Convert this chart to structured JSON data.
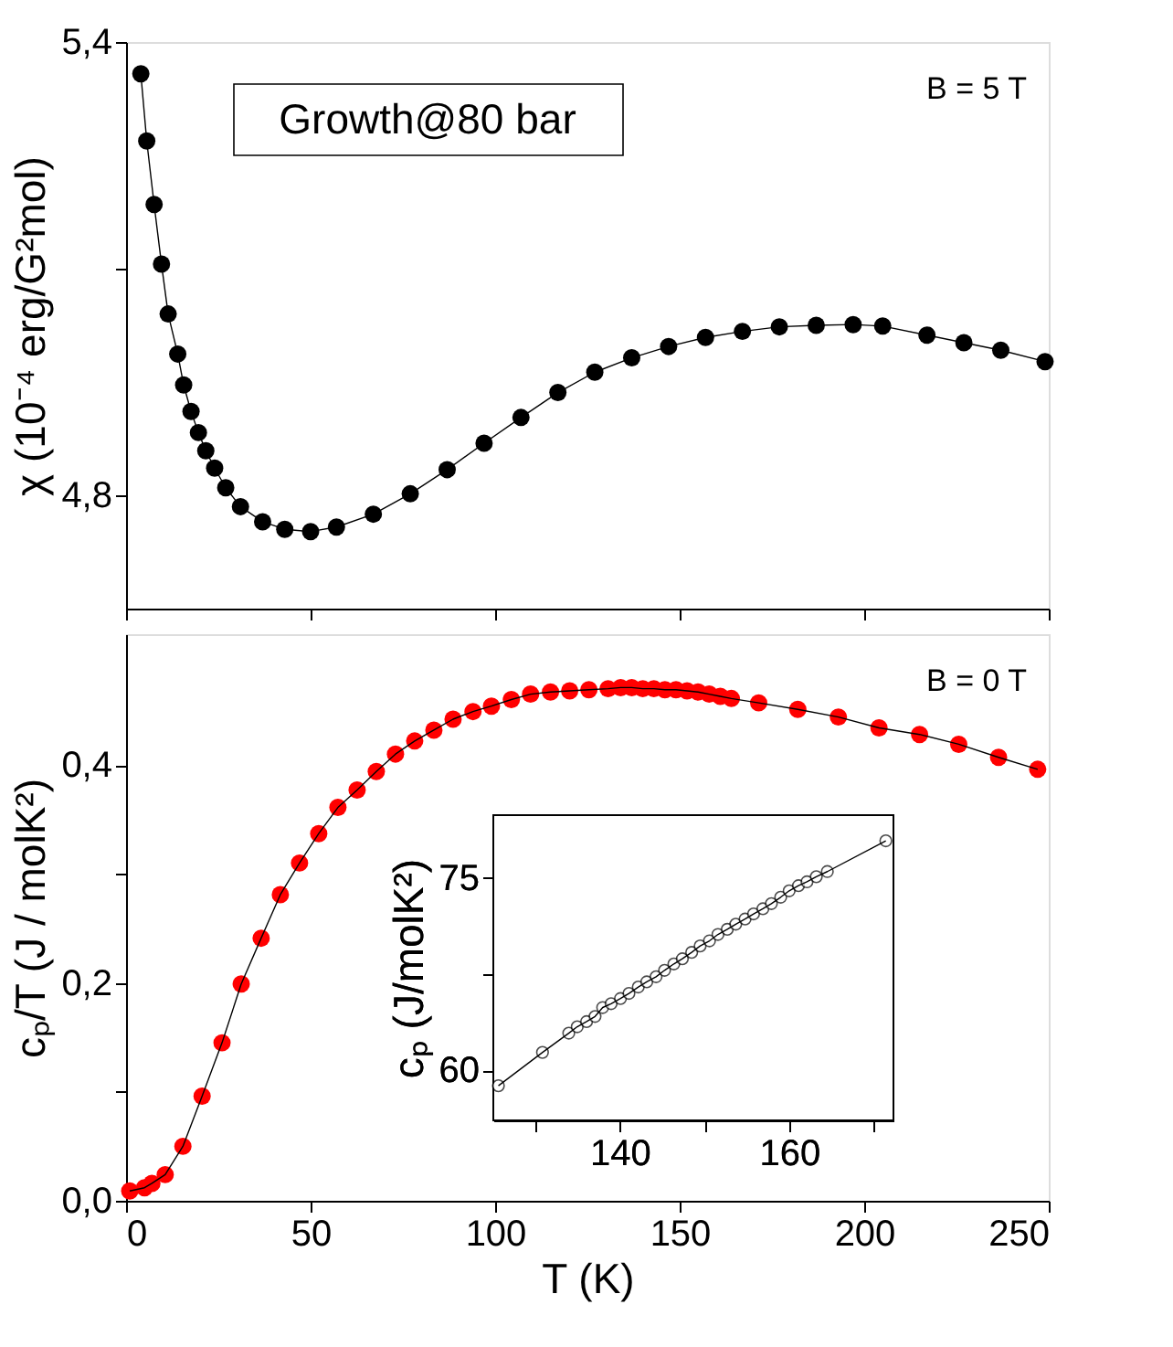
{
  "chart_data": [
    {
      "type": "line",
      "ylabel": "χ (10⁻⁴ erg/G²mol)",
      "xlim": [
        0,
        250
      ],
      "xticks": [
        0,
        50,
        100,
        150,
        200,
        250
      ],
      "ylim": [
        4.65,
        5.4
      ],
      "yticks": [
        {
          "value": 4.8,
          "label": "4,8"
        },
        {
          "value": 5.1,
          "label": null
        },
        {
          "value": 5.4,
          "label": "5,4"
        }
      ],
      "tick_labels": "y",
      "marker": "circle",
      "line_style": "solid",
      "grid": false,
      "legend": false,
      "annotations": [
        "Growth@80 bar",
        "B = 5 T"
      ],
      "series": [
        {
          "color": "#000000",
          "x": [
            4,
            5.6,
            7.6,
            9.6,
            11.4,
            14,
            15.6,
            17.6,
            19.6,
            21.6,
            24,
            27,
            31,
            37,
            43,
            50,
            57,
            67,
            77,
            87,
            97,
            107,
            117,
            127,
            137,
            147,
            157,
            167,
            177,
            187,
            197,
            205,
            217,
            227,
            237,
            249
          ],
          "values": [
            5.358,
            5.269,
            5.185,
            5.106,
            5.04,
            4.987,
            4.946,
            4.911,
            4.883,
            4.859,
            4.836,
            4.81,
            4.785,
            4.765,
            4.755,
            4.752,
            4.758,
            4.775,
            4.802,
            4.834,
            4.869,
            4.903,
            4.936,
            4.963,
            4.982,
            4.997,
            5.009,
            5.017,
            5.023,
            5.025,
            5.026,
            5.024,
            5.012,
            5.002,
            4.992,
            4.977
          ]
        }
      ]
    },
    {
      "type": "line",
      "xlabel": "T (K)",
      "ylabel": "cₚ/T (J / molK²)",
      "xlim": [
        0,
        250
      ],
      "xticks": [
        0,
        50,
        100,
        150,
        200,
        250
      ],
      "ylim": [
        0,
        0.52
      ],
      "yticks": [
        {
          "value": 0,
          "label": "0,0"
        },
        {
          "value": 0.1,
          "label": null
        },
        {
          "value": 0.2,
          "label": "0,2"
        },
        {
          "value": 0.3,
          "label": null
        },
        {
          "value": 0.4,
          "label": "0,4"
        }
      ],
      "marker": "circle",
      "line_style": "solid",
      "grid": false,
      "legend": false,
      "annotations": [
        "B = 0 T"
      ],
      "series": [
        {
          "color": "#ff0000",
          "x": [
            1,
            5,
            7,
            10.6,
            15.4,
            20.6,
            26,
            31.2,
            36.6,
            41.8,
            47,
            52.2,
            57.4,
            62.6,
            67.8,
            73,
            78.2,
            83.4,
            88.6,
            94,
            99,
            104.4,
            109.6,
            115,
            120.2,
            125.4,
            130.6,
            134,
            137,
            140,
            143,
            146,
            149,
            152,
            155,
            158,
            161,
            164,
            171.4,
            182,
            193,
            204,
            215,
            225.6,
            236.4,
            247
          ],
          "values": [
            0.009,
            0.012,
            0.016,
            0.024,
            0.05,
            0.096,
            0.145,
            0.199,
            0.241,
            0.281,
            0.31,
            0.337,
            0.361,
            0.377,
            0.394,
            0.41,
            0.422,
            0.432,
            0.442,
            0.449,
            0.454,
            0.46,
            0.465,
            0.467,
            0.468,
            0.469,
            0.47,
            0.471,
            0.471,
            0.47,
            0.47,
            0.469,
            0.469,
            0.468,
            0.467,
            0.465,
            0.463,
            0.461,
            0.457,
            0.451,
            0.444,
            0.434,
            0.428,
            0.419,
            0.407,
            0.396
          ]
        }
      ]
    },
    {
      "type": "line",
      "ylabel": "cₚ (J/molK²)",
      "xlim": [
        125.1,
        172.3
      ],
      "xticks": [
        {
          "value": 130,
          "label": null
        },
        140,
        {
          "value": 150,
          "label": null
        },
        160,
        {
          "value": 170,
          "label": null
        }
      ],
      "ylim": [
        56.1,
        79.9
      ],
      "yticks": [
        60,
        {
          "value": 67.5,
          "label": null
        },
        75
      ],
      "marker": "circle",
      "line_style": "solid",
      "grid": false,
      "legend": false,
      "series": [
        {
          "color": "#000000",
          "x": [
            125.7,
            130.9,
            134,
            135,
            136.1,
            137.1,
            138,
            139,
            140.1,
            141.1,
            142.2,
            143.2,
            144.3,
            145.3,
            146.4,
            147.4,
            148.5,
            149.5,
            150.6,
            151.6,
            152.7,
            153.7,
            154.8,
            155.8,
            156.9,
            157.9,
            159,
            160,
            161.1,
            162.1,
            163.2,
            164.5,
            171.4
          ],
          "values": [
            58.8,
            61.4,
            62.9,
            63.4,
            63.8,
            64.2,
            64.9,
            65.2,
            65.6,
            66,
            66.5,
            66.9,
            67.3,
            67.8,
            68.3,
            68.7,
            69.2,
            69.7,
            70.1,
            70.6,
            71,
            71.4,
            71.8,
            72.2,
            72.6,
            73,
            73.5,
            74,
            74.4,
            74.7,
            75.1,
            75.5,
            77.9
          ]
        }
      ]
    }
  ]
}
